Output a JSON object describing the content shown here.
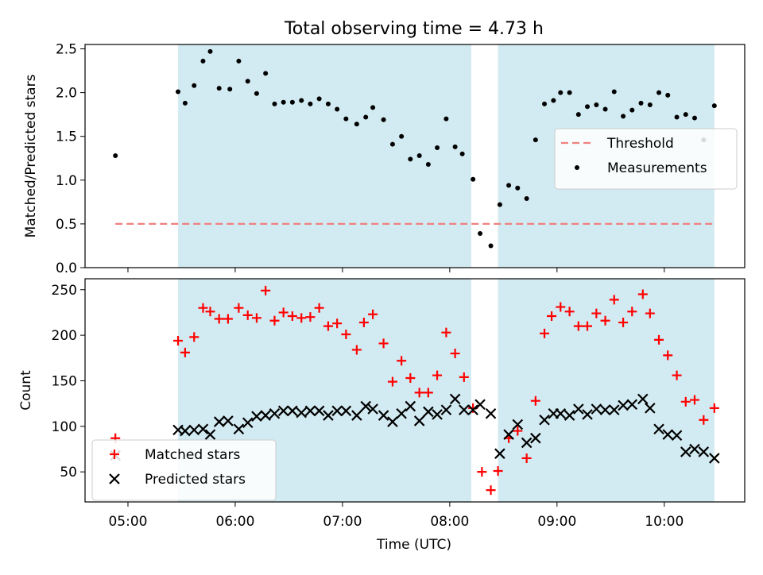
{
  "chart_data": {
    "title": "Total observing time = 4.73 h",
    "xlabel": "Time (UTC)",
    "x_tick_labels": [
      "05:00",
      "06:00",
      "07:00",
      "08:00",
      "09:00",
      "10:00"
    ],
    "x_range_hours": [
      4.6,
      10.75
    ],
    "shaded_intervals_hours": [
      [
        5.467,
        8.2
      ],
      [
        8.45,
        10.467
      ]
    ],
    "shade_color": "#add8e6",
    "panels": [
      {
        "type": "scatter",
        "ylabel": "Matched/Predicted stars",
        "ylim": [
          0,
          2.55
        ],
        "yticks": [
          "0.0",
          "0.5",
          "1.0",
          "1.5",
          "2.0",
          "2.5"
        ],
        "threshold": {
          "name": "Threshold",
          "value": 0.5,
          "x_range_hours": [
            4.883,
            10.467
          ],
          "color": "#f08080",
          "style": "dashed"
        },
        "legend_position": "right",
        "series": [
          {
            "name": "Measurements",
            "color": "#000000",
            "marker": "dot",
            "points": [
              [
                4.883,
                1.28
              ],
              [
                5.467,
                2.01
              ],
              [
                5.533,
                1.88
              ],
              [
                5.617,
                2.08
              ],
              [
                5.7,
                2.36
              ],
              [
                5.767,
                2.47
              ],
              [
                5.85,
                2.05
              ],
              [
                5.95,
                2.04
              ],
              [
                6.033,
                2.36
              ],
              [
                6.117,
                2.13
              ],
              [
                6.2,
                1.99
              ],
              [
                6.283,
                2.22
              ],
              [
                6.367,
                1.87
              ],
              [
                6.45,
                1.89
              ],
              [
                6.533,
                1.89
              ],
              [
                6.617,
                1.91
              ],
              [
                6.7,
                1.87
              ],
              [
                6.783,
                1.93
              ],
              [
                6.867,
                1.87
              ],
              [
                6.95,
                1.81
              ],
              [
                7.033,
                1.7
              ],
              [
                7.133,
                1.64
              ],
              [
                7.217,
                1.72
              ],
              [
                7.283,
                1.83
              ],
              [
                7.383,
                1.69
              ],
              [
                7.467,
                1.41
              ],
              [
                7.55,
                1.5
              ],
              [
                7.633,
                1.24
              ],
              [
                7.717,
                1.28
              ],
              [
                7.8,
                1.18
              ],
              [
                7.883,
                1.37
              ],
              [
                7.967,
                1.7
              ],
              [
                8.05,
                1.38
              ],
              [
                8.117,
                1.3
              ],
              [
                8.217,
                1.01
              ],
              [
                8.283,
                0.39
              ],
              [
                8.383,
                0.25
              ],
              [
                8.467,
                0.72
              ],
              [
                8.55,
                0.94
              ],
              [
                8.633,
                0.91
              ],
              [
                8.717,
                0.79
              ],
              [
                8.8,
                1.46
              ],
              [
                8.883,
                1.87
              ],
              [
                8.967,
                1.91
              ],
              [
                9.033,
                2.0
              ],
              [
                9.117,
                2.0
              ],
              [
                9.2,
                1.75
              ],
              [
                9.283,
                1.84
              ],
              [
                9.367,
                1.86
              ],
              [
                9.45,
                1.81
              ],
              [
                9.533,
                2.01
              ],
              [
                9.617,
                1.73
              ],
              [
                9.7,
                1.8
              ],
              [
                9.783,
                1.88
              ],
              [
                9.867,
                1.86
              ],
              [
                9.95,
                2.0
              ],
              [
                10.033,
                1.97
              ],
              [
                10.117,
                1.72
              ],
              [
                10.2,
                1.75
              ],
              [
                10.283,
                1.71
              ],
              [
                10.367,
                1.46
              ],
              [
                10.467,
                1.85
              ]
            ]
          }
        ]
      },
      {
        "type": "scatter",
        "ylabel": "Count",
        "ylim": [
          17,
          262
        ],
        "yticks": [
          "50",
          "100",
          "150",
          "200",
          "250"
        ],
        "legend_position": "lower-left",
        "series": [
          {
            "name": "Matched stars",
            "color": "#ff0000",
            "marker": "plus",
            "points": [
              [
                4.883,
                87
              ],
              [
                5.467,
                194
              ],
              [
                5.533,
                181
              ],
              [
                5.617,
                198
              ],
              [
                5.7,
                230
              ],
              [
                5.767,
                226
              ],
              [
                5.85,
                218
              ],
              [
                5.933,
                218
              ],
              [
                6.033,
                230
              ],
              [
                6.117,
                222
              ],
              [
                6.2,
                219
              ],
              [
                6.283,
                249
              ],
              [
                6.367,
                216
              ],
              [
                6.45,
                225
              ],
              [
                6.533,
                221
              ],
              [
                6.617,
                219
              ],
              [
                6.7,
                220
              ],
              [
                6.783,
                230
              ],
              [
                6.867,
                210
              ],
              [
                6.95,
                213
              ],
              [
                7.033,
                201
              ],
              [
                7.133,
                184
              ],
              [
                7.2,
                214
              ],
              [
                7.283,
                223
              ],
              [
                7.383,
                191
              ],
              [
                7.467,
                149
              ],
              [
                7.55,
                172
              ],
              [
                7.633,
                153
              ],
              [
                7.717,
                137
              ],
              [
                7.8,
                137
              ],
              [
                7.883,
                156
              ],
              [
                7.967,
                203
              ],
              [
                8.05,
                180
              ],
              [
                8.133,
                154
              ],
              [
                8.217,
                120
              ],
              [
                8.3,
                50
              ],
              [
                8.383,
                30
              ],
              [
                8.45,
                51
              ],
              [
                8.55,
                87
              ],
              [
                8.633,
                95
              ],
              [
                8.717,
                65
              ],
              [
                8.8,
                128
              ],
              [
                8.883,
                202
              ],
              [
                8.95,
                221
              ],
              [
                9.033,
                231
              ],
              [
                9.117,
                226
              ],
              [
                9.2,
                210
              ],
              [
                9.283,
                210
              ],
              [
                9.367,
                224
              ],
              [
                9.45,
                216
              ],
              [
                9.533,
                239
              ],
              [
                9.617,
                214
              ],
              [
                9.7,
                226
              ],
              [
                9.8,
                245
              ],
              [
                9.867,
                224
              ],
              [
                9.95,
                195
              ],
              [
                10.033,
                178
              ],
              [
                10.117,
                156
              ],
              [
                10.2,
                127
              ],
              [
                10.283,
                129
              ],
              [
                10.367,
                107
              ],
              [
                10.467,
                120
              ]
            ]
          },
          {
            "name": "Predicted stars",
            "color": "#000000",
            "marker": "x",
            "points": [
              [
                4.883,
                68
              ],
              [
                5.467,
                96
              ],
              [
                5.533,
                95
              ],
              [
                5.617,
                96
              ],
              [
                5.7,
                97
              ],
              [
                5.767,
                91
              ],
              [
                5.85,
                105
              ],
              [
                5.933,
                106
              ],
              [
                6.033,
                97
              ],
              [
                6.117,
                104
              ],
              [
                6.2,
                111
              ],
              [
                6.283,
                112
              ],
              [
                6.367,
                114
              ],
              [
                6.45,
                117
              ],
              [
                6.533,
                117
              ],
              [
                6.617,
                115
              ],
              [
                6.7,
                117
              ],
              [
                6.783,
                117
              ],
              [
                6.867,
                112
              ],
              [
                6.95,
                117
              ],
              [
                7.033,
                117
              ],
              [
                7.133,
                112
              ],
              [
                7.217,
                122
              ],
              [
                7.283,
                119
              ],
              [
                7.383,
                112
              ],
              [
                7.467,
                105
              ],
              [
                7.55,
                114
              ],
              [
                7.633,
                122
              ],
              [
                7.717,
                106
              ],
              [
                7.8,
                116
              ],
              [
                7.883,
                113
              ],
              [
                7.967,
                118
              ],
              [
                8.05,
                130
              ],
              [
                8.133,
                118
              ],
              [
                8.217,
                118
              ],
              [
                8.283,
                124
              ],
              [
                8.383,
                114
              ],
              [
                8.467,
                70
              ],
              [
                8.55,
                91
              ],
              [
                8.633,
                102
              ],
              [
                8.717,
                82
              ],
              [
                8.8,
                87
              ],
              [
                8.883,
                107
              ],
              [
                8.967,
                114
              ],
              [
                9.033,
                114
              ],
              [
                9.117,
                112
              ],
              [
                9.2,
                119
              ],
              [
                9.283,
                113
              ],
              [
                9.367,
                119
              ],
              [
                9.45,
                118
              ],
              [
                9.533,
                118
              ],
              [
                9.617,
                123
              ],
              [
                9.7,
                124
              ],
              [
                9.8,
                130
              ],
              [
                9.867,
                120
              ],
              [
                9.95,
                97
              ],
              [
                10.033,
                91
              ],
              [
                10.117,
                90
              ],
              [
                10.2,
                72
              ],
              [
                10.283,
                75
              ],
              [
                10.367,
                72
              ],
              [
                10.467,
                65
              ]
            ]
          }
        ]
      }
    ]
  }
}
